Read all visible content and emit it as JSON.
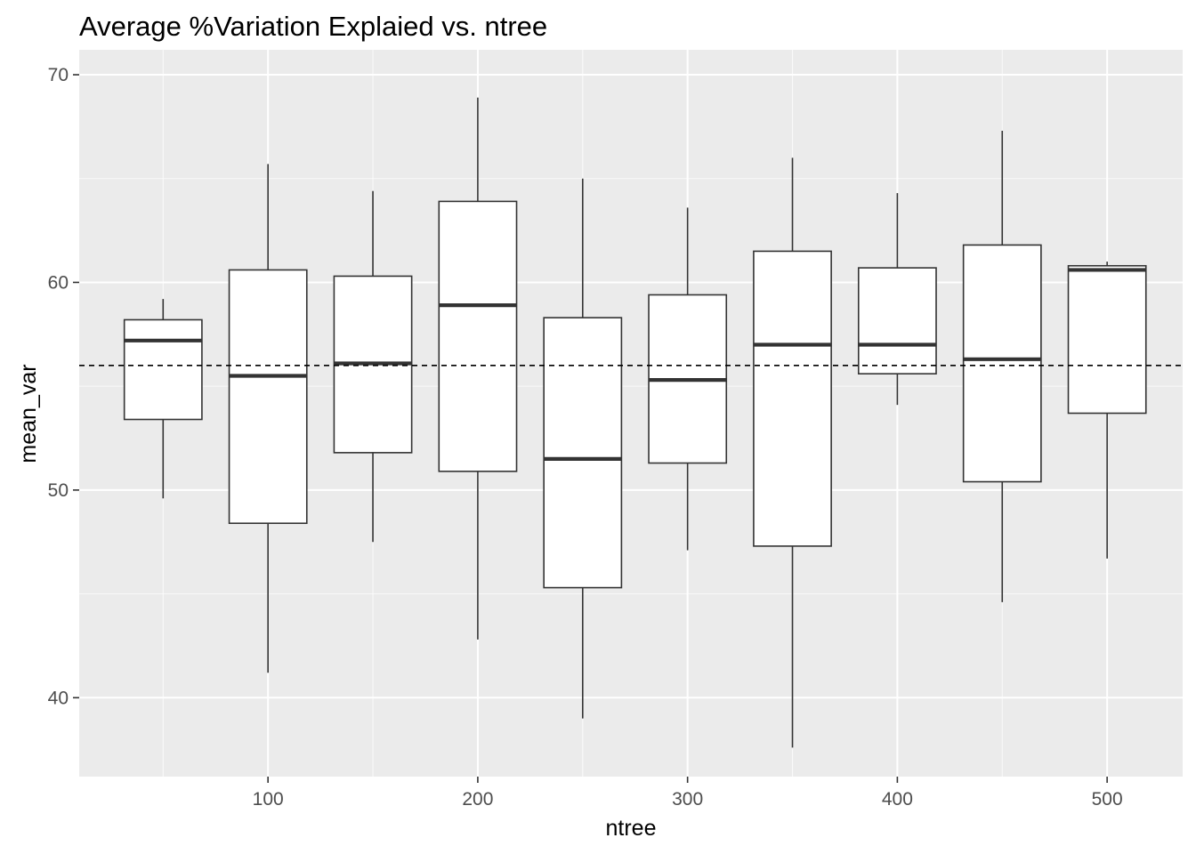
{
  "chart_data": {
    "type": "boxplot",
    "title": "Average %Variation Explaied vs. ntree",
    "xlabel": "ntree",
    "ylabel": "mean_var",
    "xlim": [
      10,
      536
    ],
    "ylim": [
      36.2,
      71.2
    ],
    "x_ticks": [
      100,
      200,
      300,
      400,
      500
    ],
    "y_ticks": [
      40,
      50,
      60,
      70
    ],
    "grid": true,
    "reference_line": {
      "y": 56.0,
      "style": "dashed"
    },
    "box_width": 37,
    "boxes": [
      {
        "x": 50,
        "whisker_low": 49.6,
        "q1": 53.4,
        "median": 57.2,
        "q3": 58.2,
        "whisker_high": 59.2
      },
      {
        "x": 100,
        "whisker_low": 41.2,
        "q1": 48.4,
        "median": 55.5,
        "q3": 60.6,
        "whisker_high": 65.7
      },
      {
        "x": 150,
        "whisker_low": 47.5,
        "q1": 51.8,
        "median": 56.1,
        "q3": 60.3,
        "whisker_high": 64.4
      },
      {
        "x": 200,
        "whisker_low": 42.8,
        "q1": 50.9,
        "median": 58.9,
        "q3": 63.9,
        "whisker_high": 68.9
      },
      {
        "x": 250,
        "whisker_low": 39.0,
        "q1": 45.3,
        "median": 51.5,
        "q3": 58.3,
        "whisker_high": 65.0
      },
      {
        "x": 300,
        "whisker_low": 47.1,
        "q1": 51.3,
        "median": 55.3,
        "q3": 59.4,
        "whisker_high": 63.6
      },
      {
        "x": 350,
        "whisker_low": 37.6,
        "q1": 47.3,
        "median": 57.0,
        "q3": 61.5,
        "whisker_high": 66.0
      },
      {
        "x": 400,
        "whisker_low": 54.1,
        "q1": 55.6,
        "median": 57.0,
        "q3": 60.7,
        "whisker_high": 64.3
      },
      {
        "x": 450,
        "whisker_low": 44.6,
        "q1": 50.4,
        "median": 56.3,
        "q3": 61.8,
        "whisker_high": 67.3
      },
      {
        "x": 500,
        "whisker_low": 46.7,
        "q1": 53.7,
        "median": 60.6,
        "q3": 60.8,
        "whisker_high": 61.0
      }
    ],
    "colors": {
      "panel": "#ebebeb",
      "grid_major": "#ffffff",
      "box_fill": "#ffffff",
      "box_line": "#333333",
      "tick_text": "#4d4d4d",
      "reference_line": "#000000"
    }
  }
}
